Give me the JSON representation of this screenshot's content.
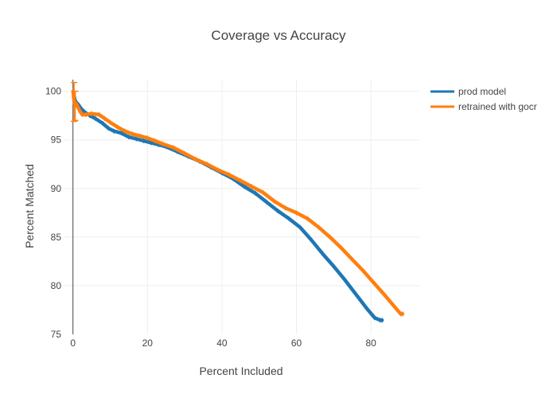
{
  "chart_data": {
    "type": "line",
    "title": "Coverage vs Accuracy",
    "xlabel": "Percent Included",
    "ylabel": "Percent Matched",
    "xlim": [
      -2.5,
      93
    ],
    "ylim": [
      75,
      101.2
    ],
    "xticks": [
      0,
      20,
      40,
      60,
      80
    ],
    "yticks": [
      75,
      80,
      85,
      90,
      95,
      100
    ],
    "grid": true,
    "legend_position": "top-right",
    "series": [
      {
        "name": "prod model",
        "color": "#1f77b4",
        "x": [
          0.05,
          0.3,
          0.6,
          1.0,
          1.5,
          2.0,
          3.0,
          4.5,
          6.0,
          8.0,
          9.5,
          11.0,
          13.0,
          15.0,
          17.0,
          19.0,
          21.0,
          23.0,
          25.0,
          28.0,
          31.0,
          34.0,
          37.0,
          40.0,
          43.0,
          46.0,
          49.0,
          52.0,
          55.0,
          58.0,
          61.0,
          64.0,
          67.0,
          70.0,
          73.0,
          76.0,
          79.0,
          81.0,
          82.5,
          83.0
        ],
        "y": [
          100.0,
          99.5,
          99.0,
          98.8,
          98.6,
          98.3,
          97.9,
          97.5,
          97.2,
          96.7,
          96.2,
          95.9,
          95.7,
          95.3,
          95.1,
          94.9,
          94.7,
          94.5,
          94.3,
          93.8,
          93.3,
          92.8,
          92.2,
          91.6,
          91.0,
          90.2,
          89.5,
          88.6,
          87.7,
          86.9,
          86.0,
          84.7,
          83.3,
          82.0,
          80.6,
          79.1,
          77.6,
          76.7,
          76.45,
          76.45
        ]
      },
      {
        "name": "retrained with gocr",
        "color": "#ff7f0e",
        "x": [
          0.05,
          0.3,
          0.6,
          0.9,
          1.3,
          1.8,
          2.5,
          3.5,
          5.0,
          7.0,
          8.5,
          10.0,
          12.0,
          14.0,
          16.0,
          18.0,
          20.0,
          22.0,
          24.0,
          27.0,
          30.0,
          33.0,
          36.0,
          39.0,
          42.0,
          45.0,
          48.0,
          51.0,
          54.0,
          57.0,
          60.0,
          63.0,
          66.0,
          69.0,
          72.0,
          75.0,
          78.0,
          81.0,
          84.0,
          86.0,
          88.0,
          88.5
        ],
        "y": [
          100.0,
          98.9,
          98.5,
          98.7,
          98.4,
          98.0,
          97.6,
          97.6,
          97.7,
          97.6,
          97.2,
          96.8,
          96.3,
          95.9,
          95.6,
          95.4,
          95.2,
          94.9,
          94.6,
          94.2,
          93.6,
          93.0,
          92.5,
          91.9,
          91.4,
          90.8,
          90.2,
          89.6,
          88.7,
          88.0,
          87.5,
          86.9,
          86.0,
          85.0,
          83.9,
          82.7,
          81.5,
          80.2,
          78.9,
          78.0,
          77.1,
          77.1
        ]
      }
    ]
  }
}
